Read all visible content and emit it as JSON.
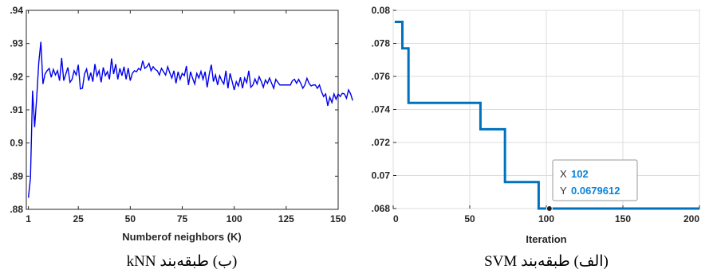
{
  "chart_data": [
    {
      "type": "line",
      "caption": "(ب) طبقه‌بند kNN",
      "xlabel": "Numberof neighbors (K)",
      "ylabel": "",
      "xlim": [
        0,
        150
      ],
      "ylim": [
        0.88,
        0.94
      ],
      "x_ticks": [
        1,
        25,
        50,
        75,
        100,
        125,
        150
      ],
      "y_ticks": [
        ".88",
        ".89",
        "0.9",
        ".91",
        ".92",
        ".93",
        ".94"
      ],
      "y_tick_values": [
        0.88,
        0.89,
        0.9,
        0.91,
        0.92,
        0.93,
        0.94
      ],
      "grid": false,
      "color": "#0000ee",
      "series": [
        {
          "x_start": 1,
          "x_step": 1,
          "values": [
            0.8835,
            0.8895,
            0.9158,
            0.9048,
            0.9138,
            0.9243,
            0.9305,
            0.9178,
            0.9208,
            0.9218,
            0.9225,
            0.9198,
            0.9222,
            0.9205,
            0.9218,
            0.9188,
            0.9256,
            0.9188,
            0.9208,
            0.9228,
            0.9183,
            0.9192,
            0.9218,
            0.9205,
            0.9236,
            0.9163,
            0.9165,
            0.9208,
            0.9223,
            0.9188,
            0.9212,
            0.9185,
            0.9238,
            0.9202,
            0.9218,
            0.9183,
            0.9228,
            0.9203,
            0.9215,
            0.9192,
            0.9255,
            0.9208,
            0.9238,
            0.9192,
            0.9225,
            0.9203,
            0.923,
            0.9192,
            0.9226,
            0.9188,
            0.921,
            0.9218,
            0.9215,
            0.9225,
            0.922,
            0.9248,
            0.9225,
            0.923,
            0.924,
            0.9218,
            0.923,
            0.9222,
            0.9218,
            0.9205,
            0.9225,
            0.9215,
            0.9205,
            0.923,
            0.9212,
            0.9196,
            0.9218,
            0.918,
            0.9215,
            0.9192,
            0.921,
            0.9203,
            0.9232,
            0.9175,
            0.9215,
            0.9195,
            0.9178,
            0.921,
            0.9196,
            0.9216,
            0.9192,
            0.9215,
            0.9168,
            0.9208,
            0.9236,
            0.9185,
            0.9205,
            0.9175,
            0.9203,
            0.9188,
            0.9178,
            0.9218,
            0.9165,
            0.921,
            0.9186,
            0.916,
            0.9185,
            0.9172,
            0.9198,
            0.9165,
            0.9196,
            0.9182,
            0.9218,
            0.9168,
            0.9175,
            0.9193,
            0.9178,
            0.92,
            0.9186,
            0.9168,
            0.919,
            0.918,
            0.9196,
            0.918,
            0.9165,
            0.9192,
            0.9183,
            0.9175,
            0.9175,
            0.9175,
            0.9175,
            0.9175,
            0.9175,
            0.9188,
            0.9192,
            0.918,
            0.9192,
            0.918,
            0.9165,
            0.9175,
            0.9195,
            0.918,
            0.9172,
            0.9175,
            0.9175,
            0.9165,
            0.9175,
            0.9155,
            0.914,
            0.9148,
            0.9112,
            0.9138,
            0.9122,
            0.9148,
            0.9132,
            0.9148,
            0.914,
            0.915,
            0.9148,
            0.9135,
            0.916,
            0.9148,
            0.9128
          ]
        }
      ]
    },
    {
      "type": "line",
      "caption": "(الف) طبقه‌بند SVM",
      "xlabel": "Iteration",
      "ylabel": "",
      "xlim": [
        0,
        200
      ],
      "ylim": [
        0.068,
        0.08
      ],
      "x_ticks": [
        "0",
        "50",
        "100",
        "150",
        "200"
      ],
      "x_tick_values": [
        0,
        50,
        100,
        150,
        200
      ],
      "y_ticks": [
        "0.08",
        ".078",
        ".076",
        ".074",
        ".072",
        "0.07",
        ".068"
      ],
      "y_tick_values": [
        0.08,
        0.078,
        0.076,
        0.074,
        0.072,
        0.07,
        0.068
      ],
      "grid": true,
      "color": "#0072bd",
      "series": [
        {
          "x": [
            1,
            6,
            6,
            8,
            8,
            10,
            10,
            57,
            57,
            73,
            73,
            95,
            95,
            102,
            200
          ],
          "values": [
            0.0793,
            0.0793,
            0.0777,
            0.0777,
            0.0777,
            0.0777,
            0.0744,
            0.0744,
            0.0728,
            0.0728,
            0.0696,
            0.0696,
            0.068,
            0.068,
            0.068
          ]
        }
      ],
      "datatip": {
        "x_label": "X",
        "x_value": "102",
        "y_label": "Y",
        "y_value": "0.0679612",
        "x": 102,
        "y": 0.068
      }
    }
  ]
}
